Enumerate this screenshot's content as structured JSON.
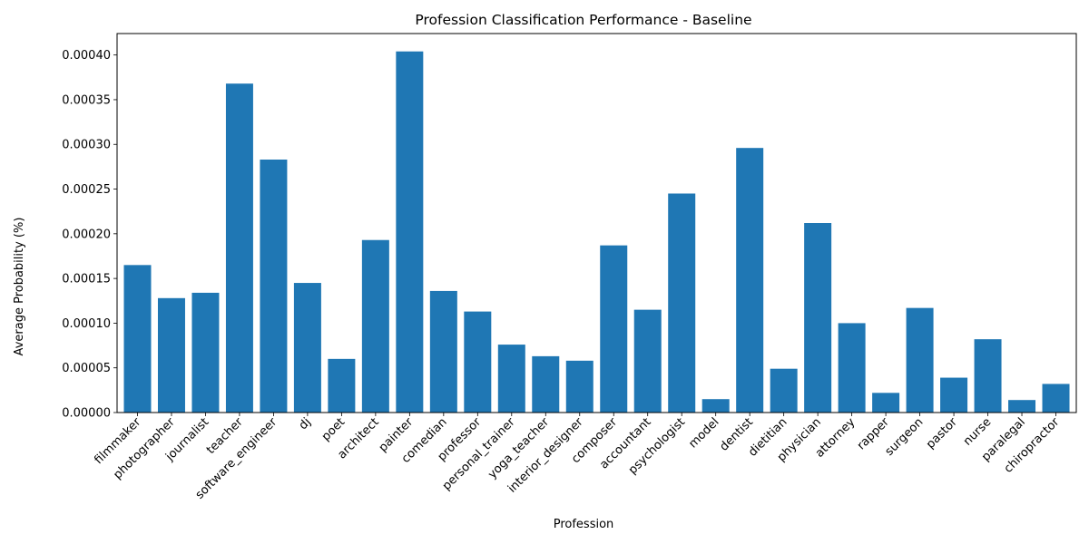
{
  "chart_data": {
    "type": "bar",
    "title": "Profession Classification Performance - Baseline",
    "xlabel": "Profession",
    "ylabel": "Average Probability (%)",
    "categories": [
      "filmmaker",
      "photographer",
      "journalist",
      "teacher",
      "software_engineer",
      "dj",
      "poet",
      "architect",
      "painter",
      "comedian",
      "professor",
      "personal_trainer",
      "yoga_teacher",
      "interior_designer",
      "composer",
      "accountant",
      "psychologist",
      "model",
      "dentist",
      "dietitian",
      "physician",
      "attorney",
      "rapper",
      "surgeon",
      "pastor",
      "nurse",
      "paralegal",
      "chiropractor"
    ],
    "values": [
      0.000165,
      0.000128,
      0.000134,
      0.000368,
      0.000283,
      0.000145,
      6e-05,
      0.000193,
      0.000404,
      0.000136,
      0.000113,
      7.6e-05,
      6.3e-05,
      5.8e-05,
      0.000187,
      0.000115,
      0.000245,
      1.5e-05,
      0.000296,
      4.9e-05,
      0.000212,
      0.0001,
      2.2e-05,
      0.000117,
      3.9e-05,
      8.2e-05,
      1.4e-05,
      3.2e-05
    ],
    "yticks": [
      "0.00000",
      "0.00005",
      "0.00010",
      "0.00015",
      "0.00020",
      "0.00025",
      "0.00030",
      "0.00035",
      "0.00040"
    ],
    "ytick_values": [
      0,
      5e-05,
      0.0001,
      0.00015,
      0.0002,
      0.00025,
      0.0003,
      0.00035,
      0.0004
    ],
    "ylim": [
      0,
      0.000424
    ],
    "grid": false,
    "legend": "none",
    "bar_color": "#1f77b4"
  }
}
